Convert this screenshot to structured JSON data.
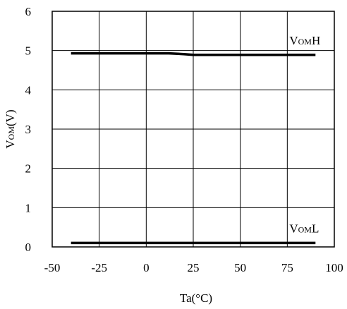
{
  "chart_data": {
    "type": "line",
    "title": "",
    "xlabel": "Ta(°C)",
    "ylabel": "VOM(V)",
    "xlim": [
      -50,
      100
    ],
    "ylim": [
      0,
      6
    ],
    "xticks": [
      -50,
      -25,
      0,
      25,
      50,
      75,
      100
    ],
    "yticks": [
      0,
      1,
      2,
      3,
      4,
      5,
      6
    ],
    "xtick_labels": [
      "-50",
      "-25",
      "0",
      "25",
      "50",
      "75",
      "100"
    ],
    "ytick_labels": [
      "0",
      "1",
      "2",
      "3",
      "4",
      "5",
      "6"
    ],
    "grid": true,
    "legend": "none",
    "line_color": "#000000",
    "series": [
      {
        "name": "VOMH",
        "x": [
          -40,
          -25,
          0,
          12,
          20,
          25,
          50,
          75,
          90
        ],
        "y": [
          4.93,
          4.93,
          4.93,
          4.93,
          4.91,
          4.89,
          4.89,
          4.89,
          4.89
        ]
      },
      {
        "name": "VOML",
        "x": [
          -40,
          -25,
          0,
          25,
          50,
          75,
          90
        ],
        "y": [
          0.1,
          0.1,
          0.1,
          0.1,
          0.1,
          0.1,
          0.1
        ]
      }
    ]
  }
}
